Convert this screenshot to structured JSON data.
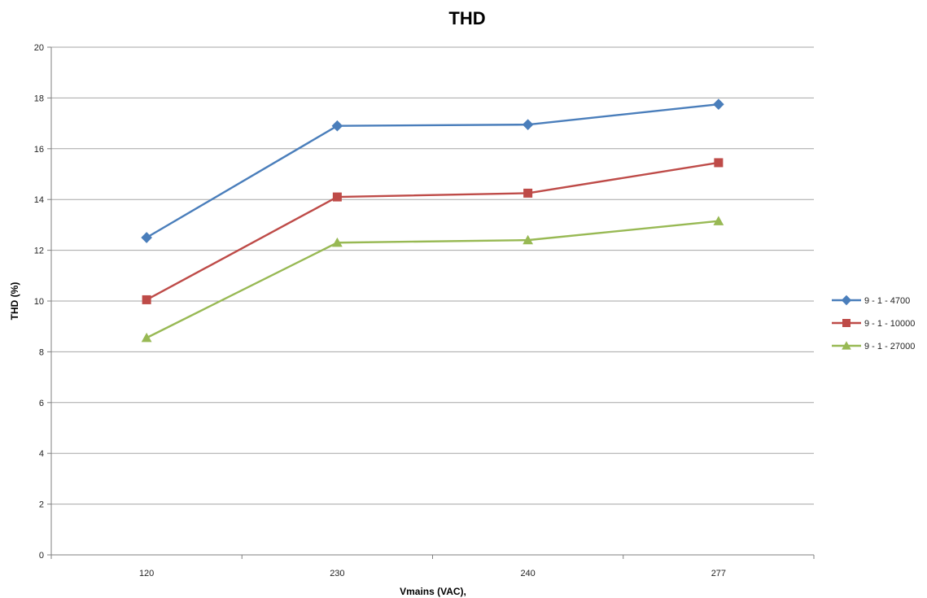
{
  "chart_data": {
    "type": "line",
    "title": "THD",
    "xlabel": "Vmains (VAC),",
    "ylabel": "THD (%)",
    "categories": [
      "120",
      "230",
      "240",
      "277"
    ],
    "ylim": [
      0,
      20
    ],
    "yticks": [
      0,
      2,
      4,
      6,
      8,
      10,
      12,
      14,
      16,
      18,
      20
    ],
    "grid": "horizontal",
    "legend_position": "right",
    "series": [
      {
        "name": "9 - 1 - 4700",
        "values": [
          12.5,
          16.9,
          16.95,
          17.75
        ],
        "color": "#4a7ebb",
        "marker": "diamond"
      },
      {
        "name": "9 - 1 - 10000",
        "values": [
          10.05,
          14.1,
          14.25,
          15.45
        ],
        "color": "#be4b48",
        "marker": "square"
      },
      {
        "name": "9 - 1 - 27000",
        "values": [
          8.55,
          12.3,
          12.4,
          13.15
        ],
        "color": "#98b954",
        "marker": "triangle"
      }
    ]
  }
}
